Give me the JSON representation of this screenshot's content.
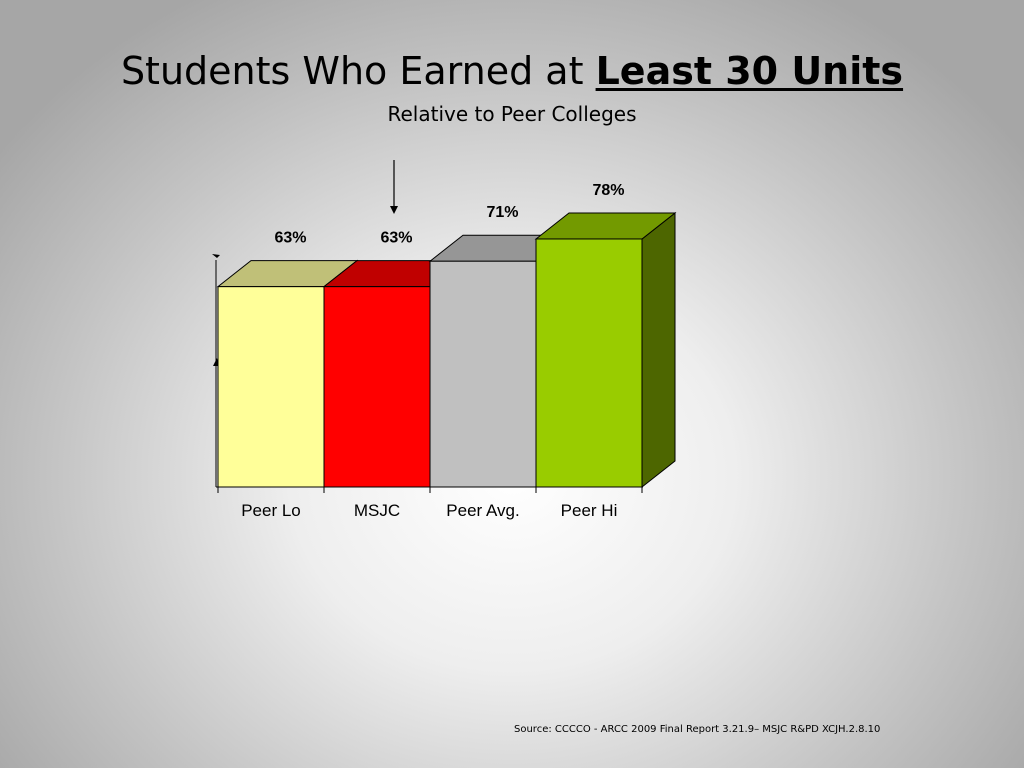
{
  "slide": {
    "title_prefix": "Students Who Earned at ",
    "title_emphasis": "Least 30 Units",
    "subtitle": "Relative to Peer Colleges",
    "source": "Source: CCCCO - ARCC 2009 Final Report 3.21.9– MSJC R&PD XCJH.2.8.10"
  },
  "chart_data": {
    "type": "bar",
    "style": "3d",
    "categories": [
      "Peer Lo",
      "MSJC",
      "Peer Avg.",
      "Peer Hi"
    ],
    "values": [
      63,
      63,
      71,
      78
    ],
    "data_labels": [
      "63%",
      "63%",
      "71%",
      "78%"
    ],
    "ylim": [
      0,
      100
    ],
    "grid": false,
    "legend": "none",
    "highlighted_category": "MSJC",
    "colors": {
      "front": [
        "#ffff99",
        "#ff0000",
        "#c0c0c0",
        "#99cc00"
      ],
      "top": [
        "#c0c078",
        "#c00000",
        "#969696",
        "#739a00"
      ],
      "side": [
        "#c0c078",
        "#c00000",
        "#969696",
        "#4d6600"
      ]
    }
  }
}
